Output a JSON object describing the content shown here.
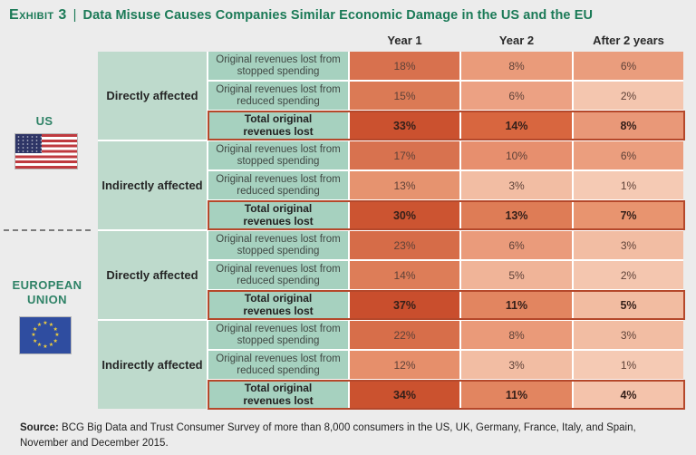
{
  "header": {
    "exhibit_label": "Exhibit 3",
    "separator": "|",
    "title": "Data Misuse Causes Companies Similar Economic Damage in the US and the EU"
  },
  "regions": {
    "us": {
      "label": "US",
      "flag": "us-flag"
    },
    "eu": {
      "label": "EUROPEAN UNION",
      "flag": "eu-flag"
    }
  },
  "chart_data": {
    "type": "heatmap",
    "unit": "%",
    "columns": [
      "Year 1",
      "Year 2",
      "After 2 years"
    ],
    "legend_position": "none",
    "color_scale_hint": "darker red-orange = larger revenue loss",
    "groups": [
      {
        "region": "US",
        "segment": "Directly affected",
        "rows": [
          {
            "label": "Original revenues lost from stopped spending",
            "values": [
              18,
              8,
              6
            ],
            "colors": [
              "#d8714e",
              "#ea9b7a",
              "#ea9d7d"
            ],
            "total": false
          },
          {
            "label": "Original revenues lost from reduced spending",
            "values": [
              15,
              6,
              2
            ],
            "colors": [
              "#db7a55",
              "#eca183",
              "#f4c6af"
            ],
            "total": false
          },
          {
            "label": "Total original revenues lost",
            "values": [
              33,
              14,
              8
            ],
            "colors": [
              "#cb512f",
              "#d8663f",
              "#e99878"
            ],
            "total": true
          }
        ]
      },
      {
        "region": "US",
        "segment": "Indirectly affected",
        "rows": [
          {
            "label": "Original revenues lost from stopped spending",
            "values": [
              17,
              10,
              6
            ],
            "colors": [
              "#d8724f",
              "#e78f6e",
              "#eb9e7e"
            ],
            "total": false
          },
          {
            "label": "Original revenues lost from reduced spending",
            "values": [
              13,
              3,
              1
            ],
            "colors": [
              "#e6936f",
              "#f2bda3",
              "#f5cab4"
            ],
            "total": false
          },
          {
            "label": "Total original revenues lost",
            "values": [
              30,
              13,
              7
            ],
            "colors": [
              "#cc5431",
              "#de7c56",
              "#e8946f"
            ],
            "total": true
          }
        ]
      },
      {
        "region": "EUROPEAN UNION",
        "segment": "Directly affected",
        "rows": [
          {
            "label": "Original revenues lost from stopped spending",
            "values": [
              23,
              6,
              3
            ],
            "colors": [
              "#d66c48",
              "#ea9b7b",
              "#f2bda3"
            ],
            "total": false
          },
          {
            "label": "Original revenues lost from reduced spending",
            "values": [
              14,
              5,
              2
            ],
            "colors": [
              "#dd7d58",
              "#f0b498",
              "#f4c6af"
            ],
            "total": false
          },
          {
            "label": "Total original revenues lost",
            "values": [
              37,
              11,
              5
            ],
            "colors": [
              "#c94e2d",
              "#e28560",
              "#f2bca1"
            ],
            "total": true
          }
        ]
      },
      {
        "region": "EUROPEAN UNION",
        "segment": "Indirectly affected",
        "rows": [
          {
            "label": "Original revenues lost from stopped spending",
            "values": [
              22,
              8,
              3
            ],
            "colors": [
              "#d76e4a",
              "#ea9a79",
              "#f2bda3"
            ],
            "total": false
          },
          {
            "label": "Original revenues lost from reduced spending",
            "values": [
              12,
              3,
              1
            ],
            "colors": [
              "#e68f6b",
              "#f2bda3",
              "#f5cab4"
            ],
            "total": false
          },
          {
            "label": "Total original revenues lost",
            "values": [
              34,
              11,
              4
            ],
            "colors": [
              "#cb522f",
              "#e28560",
              "#f4c3ab"
            ],
            "total": true
          }
        ]
      }
    ]
  },
  "source": {
    "label": "Source:",
    "text": "BCG Big Data and Trust Consumer Survey of more than 8,000 consumers in the US, UK, Germany, France, Italy, and Spain, November and December 2015."
  },
  "colors": {
    "accent_green": "#1b7a57",
    "region_label_green": "#2e8266",
    "segment_cell_green": "#bedacc",
    "description_cell_green": "#a6d1bf",
    "total_row_border": "#b5482b",
    "page_background": "#ececec"
  }
}
